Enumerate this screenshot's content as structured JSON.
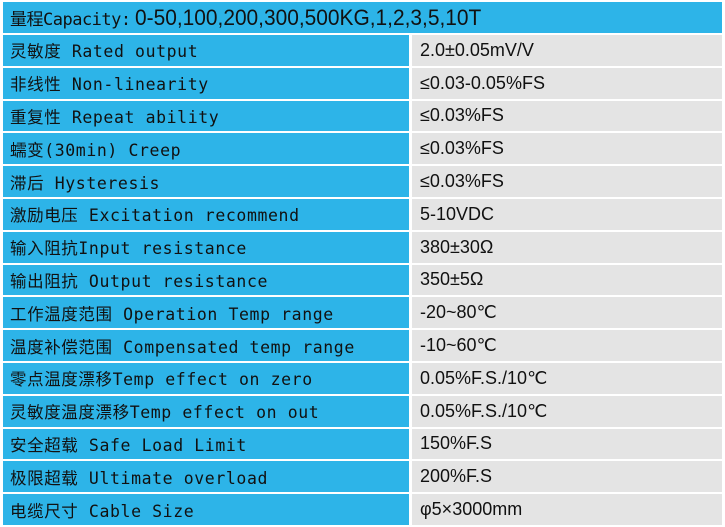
{
  "header": {
    "label": "量程Capacity:",
    "value": "0-50,100,200,300,500KG,1,2,3,5,10T"
  },
  "colors": {
    "label_bg": "#2db4e8",
    "value_bg": "#e4e4e4"
  },
  "rows": [
    {
      "label": "灵敏度 Rated output",
      "value": "2.0±0.05mV/V"
    },
    {
      "label": "非线性 Non-linearity",
      "value": "≤0.03-0.05%FS"
    },
    {
      "label": "重复性 Repeat ability",
      "value": "≤0.03%FS"
    },
    {
      "label": "蠕变(30min) Creep",
      "value": "≤0.03%FS"
    },
    {
      "label": "滞后 Hysteresis",
      "value": "≤0.03%FS"
    },
    {
      "label": "激励电压 Excitation recommend",
      "value": "5-10VDC"
    },
    {
      "label": "输入阻抗Input resistance",
      "value": "380±30Ω"
    },
    {
      "label": "输出阻抗 Output resistance",
      "value": "350±5Ω"
    },
    {
      "label": "工作温度范围 Operation Temp range",
      "value": "-20~80℃"
    },
    {
      "label": "温度补偿范围 Compensated temp range",
      "value": "-10~60℃"
    },
    {
      "label": "零点温度漂移Temp effect on zero",
      "value": "0.05%F.S./10℃"
    },
    {
      "label": "灵敏度温度漂移Temp effect on out",
      "value": "0.05%F.S./10℃"
    },
    {
      "label": "安全超载 Safe Load Limit",
      "value": "150%F.S"
    },
    {
      "label": "极限超载 Ultimate overload",
      "value": "200%F.S"
    },
    {
      "label": "电缆尺寸 Cable Size",
      "value": "φ5×3000mm"
    }
  ]
}
